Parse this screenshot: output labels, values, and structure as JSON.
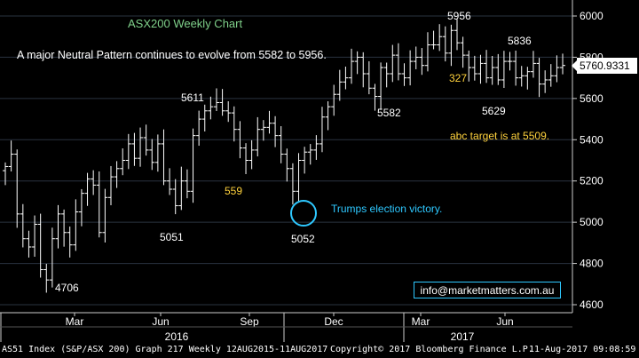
{
  "chart_data": {
    "type": "ohlc",
    "title": "ASX200 Weekly Chart",
    "subtitle": "A major Neutral Pattern continues to evolve from 5582 to 5956.",
    "ylim": [
      4580,
      6070
    ],
    "y_ticks": [
      4600,
      4800,
      5000,
      5200,
      5400,
      5600,
      5800,
      6000
    ],
    "month_ticks": [
      "Mar",
      "Jun",
      "Sep",
      "Dec",
      "Mar",
      "Jun"
    ],
    "year_ticks": [
      "2016",
      "2017"
    ],
    "last_price": "5760.9331",
    "closes": [
      5270,
      5330,
      5040,
      4920,
      4880,
      4990,
      4770,
      4720,
      4920,
      5040,
      4950,
      4890,
      5050,
      5140,
      5210,
      5180,
      4950,
      5120,
      5220,
      5260,
      5300,
      5380,
      5310,
      5410,
      5350,
      5290,
      5380,
      5200,
      5160,
      5080,
      5200,
      5150,
      5420,
      5500,
      5540,
      5560,
      5580,
      5540,
      5530,
      5450,
      5360,
      5300,
      5350,
      5450,
      5460,
      5480,
      5420,
      5330,
      5260,
      5150,
      5300,
      5340,
      5350,
      5380,
      5510,
      5560,
      5620,
      5680,
      5700,
      5780,
      5800,
      5720,
      5650,
      5610,
      5750,
      5720,
      5810,
      5720,
      5700,
      5780,
      5800,
      5760,
      5860,
      5860,
      5900,
      5820,
      5930,
      5870,
      5810,
      5750,
      5720,
      5770,
      5700,
      5750,
      5690,
      5780,
      5780,
      5700,
      5710,
      5730,
      5770,
      5670,
      5690,
      5710,
      5750,
      5760
    ],
    "annotations": [
      "5956",
      "5836",
      "327",
      "5611",
      "5582",
      "5629",
      "abc target is at 5509.",
      "559",
      "5051",
      "5052",
      "4706",
      "Trumps election victory."
    ]
  },
  "footer": {
    "security": "AS51 Index (S&P/ASX 200) Graph 217  Weekly 12AUG2015-11AUG2017",
    "copyright": "Copyright© 2017 Bloomberg Finance L.P.",
    "timestamp": "11-Aug-2017 09:08:59"
  },
  "watermark": "info@marketmatters.com.au",
  "colors": {
    "bars": "#ffffff",
    "title": "#7fd08a",
    "annotation_yellow": "#ffd23c",
    "annotation_cyan": "#2ec8ff",
    "grid": "#2a3340"
  }
}
